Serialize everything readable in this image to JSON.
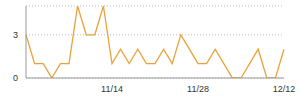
{
  "chart_data": {
    "type": "line",
    "categories": [
      null,
      null,
      null,
      null,
      null,
      null,
      null,
      null,
      null,
      null,
      "11/14",
      null,
      null,
      null,
      null,
      null,
      null,
      null,
      null,
      null,
      "11/28",
      null,
      null,
      null,
      null,
      null,
      null,
      null,
      null,
      null,
      "12/12"
    ],
    "values": [
      3,
      1,
      1,
      0,
      1,
      1,
      5,
      3,
      3,
      5,
      1,
      2,
      1,
      2,
      1,
      1,
      2,
      1,
      3,
      2,
      1,
      1,
      2,
      1,
      0,
      0,
      1,
      2,
      0,
      0,
      2
    ],
    "color": "#e8a33a",
    "ylim": [
      0,
      5
    ],
    "yticks": [
      0,
      3
    ],
    "grid": true
  }
}
